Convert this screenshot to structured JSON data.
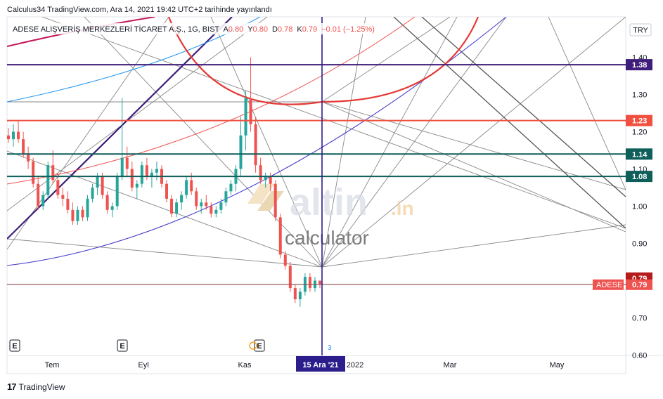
{
  "header": {
    "publish_line": "Calculus34 TradingView.com, Ara 14, 2021 19:42 UTC+2 tarihinde yayınlandı"
  },
  "legend": {
    "symbol": "ADESE ALIŞVERİŞ MERKEZLERİ TİCARET A.Ş., 1G, BIST",
    "o_label": "A",
    "o_value": "0.80",
    "h_label": "Y",
    "h_value": "0.80",
    "l_label": "D",
    "l_value": "0.78",
    "c_label": "K",
    "c_value": "0.79",
    "change": "−0.01 (−1.25%)"
  },
  "currency": "TRY",
  "watermark": {
    "brand": "altin",
    "tld": ".in",
    "sub": "calculator"
  },
  "colors": {
    "down": "#ef5350",
    "up": "#26a69a",
    "purple": "#3f1d7a",
    "navy": "#2c1d8c",
    "teal_level": "#0e5e5a",
    "red_level": "#f05040",
    "gray_line": "#888888"
  },
  "price_markers": [
    {
      "value": "1.38",
      "color": "#3f1d7a"
    },
    {
      "value": "1.23",
      "color": "#f05040"
    },
    {
      "value": "1.14",
      "color": "#0e5e5a"
    },
    {
      "value": "1.08",
      "color": "#0e5e5a"
    },
    {
      "value": "0.79",
      "color": "#b71c1c"
    }
  ],
  "adese_label": {
    "name": "ADESE",
    "value": "0.79"
  },
  "cursor_date": "15 Ara '21",
  "cursor_small": "3",
  "earnings_markers": [
    "E",
    "E",
    "E"
  ],
  "footer": {
    "brand": "TradingView"
  },
  "chart_data": {
    "type": "candlestick",
    "x_labels": [
      "Tem",
      "Eyl",
      "Kas",
      "2022",
      "Mar",
      "May"
    ],
    "y_ticks": [
      "0.60",
      "0.70",
      "0.80",
      "0.90",
      "1.00",
      "1.10",
      "1.20",
      "1.30",
      "1.40"
    ],
    "ylim": [
      0.55,
      1.43
    ],
    "horizontal_levels": [
      1.38,
      1.23,
      1.14,
      1.08,
      0.79
    ],
    "last_close": 0.79,
    "candles_approx": [
      [
        1.19,
        1.21,
        1.17,
        1.18
      ],
      [
        1.18,
        1.22,
        1.16,
        1.2
      ],
      [
        1.2,
        1.23,
        1.17,
        1.18
      ],
      [
        1.18,
        1.2,
        1.13,
        1.14
      ],
      [
        1.14,
        1.16,
        1.1,
        1.12
      ],
      [
        1.12,
        1.13,
        1.05,
        1.06
      ],
      [
        1.06,
        1.08,
        0.99,
        1.0
      ],
      [
        1.0,
        1.04,
        0.99,
        1.03
      ],
      [
        1.03,
        1.12,
        1.02,
        1.11
      ],
      [
        1.11,
        1.15,
        1.06,
        1.07
      ],
      [
        1.07,
        1.09,
        1.02,
        1.03
      ],
      [
        1.03,
        1.05,
        1.0,
        1.02
      ],
      [
        1.02,
        1.04,
        0.98,
        0.99
      ],
      [
        0.99,
        1.01,
        0.95,
        0.96
      ],
      [
        0.96,
        1.0,
        0.95,
        0.99
      ],
      [
        0.99,
        1.0,
        0.96,
        0.97
      ],
      [
        0.97,
        1.03,
        0.96,
        1.02
      ],
      [
        1.02,
        1.06,
        1.01,
        1.05
      ],
      [
        1.05,
        1.09,
        1.03,
        1.08
      ],
      [
        1.08,
        1.09,
        1.02,
        1.03
      ],
      [
        1.03,
        1.04,
        0.98,
        0.99
      ],
      [
        0.99,
        1.01,
        0.97,
        1.0
      ],
      [
        1.0,
        1.09,
        0.99,
        1.08
      ],
      [
        1.08,
        1.29,
        1.07,
        1.13
      ],
      [
        1.13,
        1.16,
        1.08,
        1.1
      ],
      [
        1.1,
        1.12,
        1.04,
        1.05
      ],
      [
        1.05,
        1.07,
        1.02,
        1.06
      ],
      [
        1.06,
        1.12,
        1.05,
        1.11
      ],
      [
        1.11,
        1.13,
        1.07,
        1.08
      ],
      [
        1.08,
        1.1,
        1.05,
        1.09
      ],
      [
        1.09,
        1.12,
        1.07,
        1.1
      ],
      [
        1.1,
        1.11,
        1.05,
        1.06
      ],
      [
        1.06,
        1.07,
        1.01,
        1.02
      ],
      [
        1.02,
        1.03,
        0.97,
        0.98
      ],
      [
        0.98,
        1.02,
        0.97,
        1.01
      ],
      [
        1.01,
        1.04,
        0.99,
        1.03
      ],
      [
        1.03,
        1.08,
        1.02,
        1.07
      ],
      [
        1.07,
        1.09,
        1.03,
        1.04
      ],
      [
        1.04,
        1.05,
        0.99,
        1.0
      ],
      [
        1.0,
        1.02,
        0.98,
        1.01
      ],
      [
        1.01,
        1.03,
        0.99,
        1.0
      ],
      [
        1.0,
        1.01,
        0.97,
        0.98
      ],
      [
        0.98,
        1.0,
        0.97,
        0.99
      ],
      [
        0.99,
        1.02,
        0.98,
        1.01
      ],
      [
        1.01,
        1.05,
        1.0,
        1.04
      ],
      [
        1.04,
        1.07,
        1.03,
        1.06
      ],
      [
        1.06,
        1.11,
        1.04,
        1.1
      ],
      [
        1.1,
        1.24,
        1.08,
        1.19
      ],
      [
        1.19,
        1.31,
        1.15,
        1.29
      ],
      [
        1.29,
        1.4,
        1.2,
        1.22
      ],
      [
        1.22,
        1.24,
        1.09,
        1.11
      ],
      [
        1.11,
        1.13,
        1.06,
        1.07
      ],
      [
        1.07,
        1.09,
        1.05,
        1.08
      ],
      [
        1.08,
        1.09,
        1.04,
        1.06
      ],
      [
        1.06,
        1.07,
        0.96,
        0.97
      ],
      [
        0.97,
        0.98,
        0.86,
        0.87
      ],
      [
        0.87,
        0.88,
        0.83,
        0.84
      ],
      [
        0.84,
        0.85,
        0.77,
        0.78
      ],
      [
        0.78,
        0.79,
        0.74,
        0.75
      ],
      [
        0.75,
        0.78,
        0.73,
        0.77
      ],
      [
        0.77,
        0.82,
        0.76,
        0.81
      ],
      [
        0.81,
        0.82,
        0.77,
        0.78
      ],
      [
        0.78,
        0.81,
        0.77,
        0.8
      ],
      [
        0.8,
        0.8,
        0.78,
        0.79
      ]
    ]
  }
}
